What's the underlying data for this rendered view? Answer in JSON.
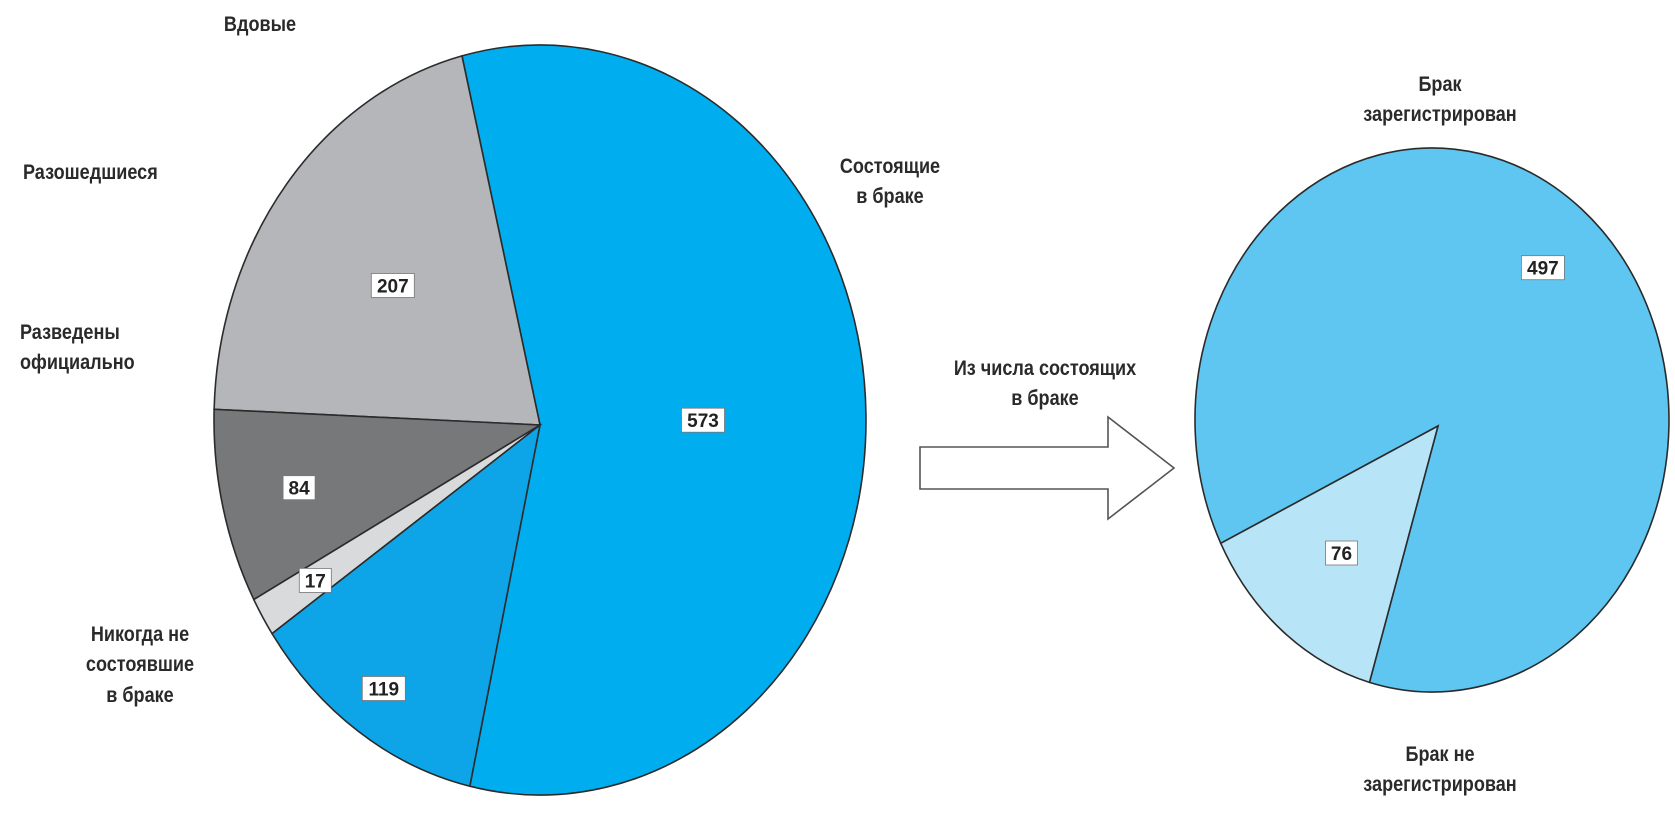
{
  "chart_data": [
    {
      "type": "pie",
      "slices": [
        {
          "label": "Состоящие\nв браке",
          "value": 573,
          "color": "#00aeef"
        },
        {
          "label": "Никогда не\nсостоявшие\nв браке",
          "value": 207,
          "color": "#b4b6b9"
        },
        {
          "label": "Разведены\nофициально",
          "value": 84,
          "color": "#76787a"
        },
        {
          "label": "Разошедшиеся",
          "value": 17,
          "color": "#d9dadb"
        },
        {
          "label": "Вдовые",
          "value": 119,
          "color": "#0ea5e8"
        }
      ]
    },
    {
      "type": "pie",
      "slices": [
        {
          "label": "Брак\nзарегистрирован",
          "value": 497,
          "color": "#5ec6f0"
        },
        {
          "label": "Брак не\nзарегистрирован",
          "value": 76,
          "color": "#b8e4f8"
        }
      ]
    }
  ],
  "callout": {
    "text": "Из числа состоящих\nв браке"
  }
}
